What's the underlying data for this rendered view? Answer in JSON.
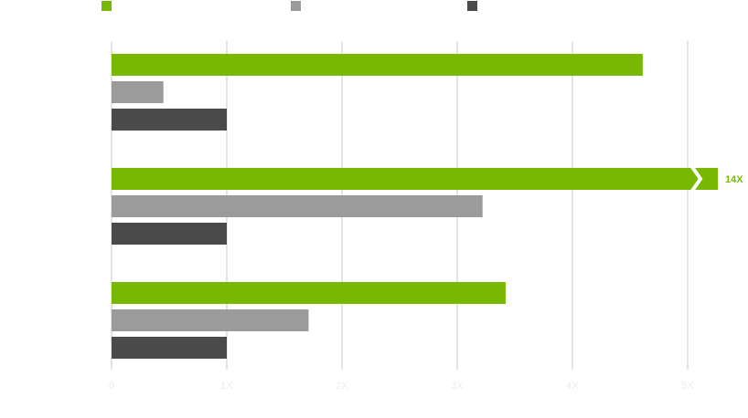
{
  "chart_data": {
    "type": "bar",
    "orientation": "horizontal",
    "categories": [
      null,
      null,
      null
    ],
    "series": [
      {
        "color": "#76b900",
        "values": [
          4.61,
          14,
          3.42
        ],
        "value_labels": [
          null,
          "14X",
          null
        ]
      },
      {
        "color": "#9b9b9b",
        "values": [
          0.45,
          3.22,
          1.71
        ]
      },
      {
        "color": "#4a4a4a",
        "values": [
          1,
          1,
          1
        ]
      }
    ],
    "xlim": [
      0,
      5
    ],
    "xticks": [
      0,
      {
        "value": 1,
        "label": "1X"
      },
      {
        "value": 2,
        "label": "2X"
      },
      {
        "value": 3,
        "label": "3X"
      },
      {
        "value": 4,
        "label": "4X"
      },
      {
        "value": 5,
        "label": "5X"
      }
    ],
    "grid": true,
    "legend": "top"
  }
}
